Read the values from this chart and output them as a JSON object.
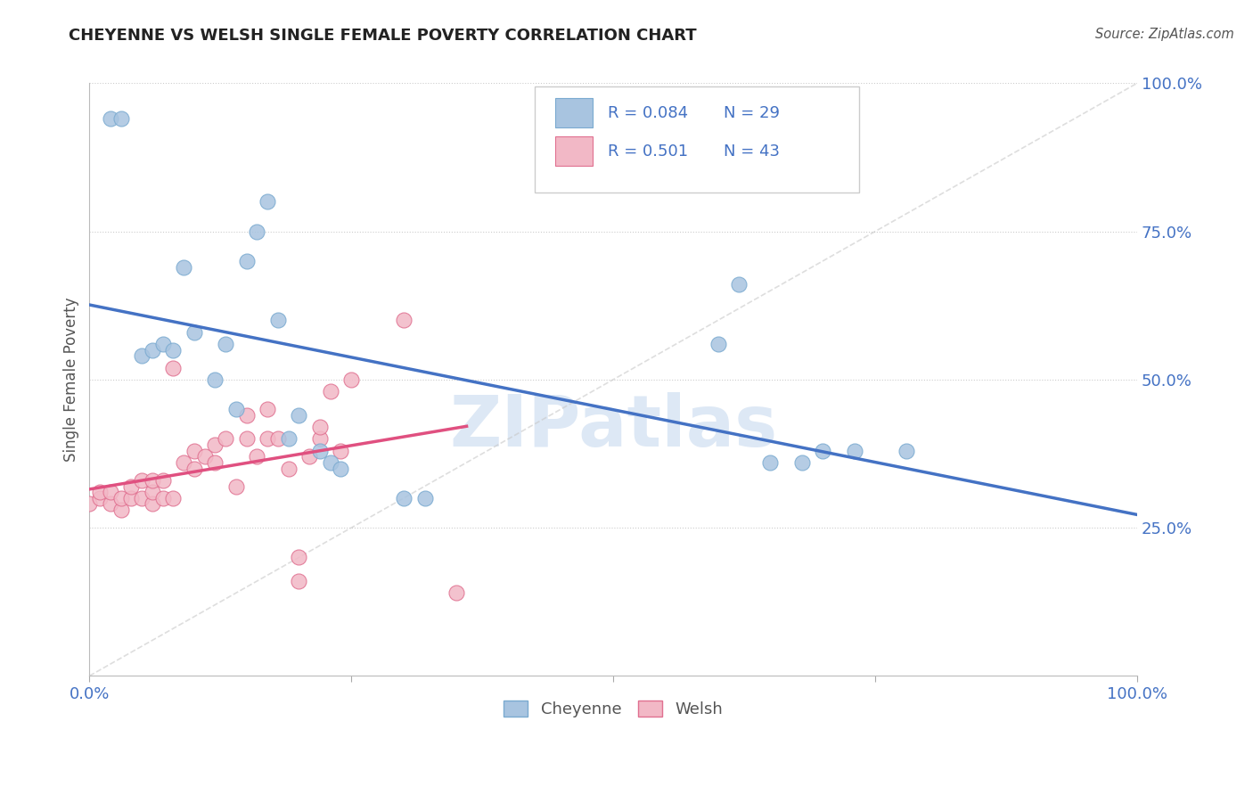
{
  "title": "CHEYENNE VS WELSH SINGLE FEMALE POVERTY CORRELATION CHART",
  "source": "Source: ZipAtlas.com",
  "ylabel": "Single Female Poverty",
  "watermark": "ZIPatlas",
  "cheyenne": {
    "R": 0.084,
    "N": 29,
    "color": "#a8c4e0",
    "edge_color": "#7aaad0",
    "line_color": "#4472c4",
    "x": [
      0.02,
      0.03,
      0.05,
      0.06,
      0.07,
      0.08,
      0.09,
      0.1,
      0.12,
      0.13,
      0.14,
      0.15,
      0.16,
      0.17,
      0.18,
      0.19,
      0.2,
      0.22,
      0.23,
      0.24,
      0.3,
      0.32,
      0.6,
      0.62,
      0.65,
      0.68,
      0.7,
      0.73,
      0.78
    ],
    "y": [
      0.94,
      0.94,
      0.54,
      0.55,
      0.56,
      0.55,
      0.69,
      0.58,
      0.5,
      0.56,
      0.45,
      0.7,
      0.75,
      0.8,
      0.6,
      0.4,
      0.44,
      0.38,
      0.36,
      0.35,
      0.3,
      0.3,
      0.56,
      0.66,
      0.36,
      0.36,
      0.38,
      0.38,
      0.38
    ]
  },
  "welsh": {
    "R": 0.501,
    "N": 43,
    "color": "#f2b8c6",
    "edge_color": "#e07090",
    "line_color": "#e05080",
    "x": [
      0.0,
      0.01,
      0.01,
      0.02,
      0.02,
      0.03,
      0.03,
      0.04,
      0.04,
      0.05,
      0.05,
      0.06,
      0.06,
      0.06,
      0.07,
      0.07,
      0.08,
      0.08,
      0.09,
      0.1,
      0.1,
      0.11,
      0.12,
      0.12,
      0.13,
      0.14,
      0.15,
      0.15,
      0.16,
      0.17,
      0.17,
      0.18,
      0.19,
      0.2,
      0.2,
      0.21,
      0.22,
      0.22,
      0.23,
      0.24,
      0.25,
      0.3,
      0.35
    ],
    "y": [
      0.29,
      0.3,
      0.31,
      0.29,
      0.31,
      0.28,
      0.3,
      0.3,
      0.32,
      0.3,
      0.33,
      0.29,
      0.31,
      0.33,
      0.3,
      0.33,
      0.3,
      0.52,
      0.36,
      0.35,
      0.38,
      0.37,
      0.36,
      0.39,
      0.4,
      0.32,
      0.4,
      0.44,
      0.37,
      0.4,
      0.45,
      0.4,
      0.35,
      0.16,
      0.2,
      0.37,
      0.4,
      0.42,
      0.48,
      0.38,
      0.5,
      0.6,
      0.14
    ]
  },
  "xlim": [
    0.0,
    1.0
  ],
  "ylim": [
    0.0,
    1.0
  ],
  "xticks": [
    0.0,
    0.25,
    0.5,
    0.75,
    1.0
  ],
  "yticks": [
    0.25,
    0.5,
    0.75,
    1.0
  ],
  "xticklabels": [
    "0.0%",
    "",
    "",
    "",
    "100.0%"
  ],
  "yticklabels": [
    "25.0%",
    "50.0%",
    "75.0%",
    "100.0%"
  ],
  "background_color": "#ffffff",
  "grid_color": "#cccccc",
  "title_color": "#222222",
  "ylabel_color": "#555555",
  "tick_label_color": "#4472c4",
  "source_color": "#555555",
  "diagonal_color": "#c8c8c8",
  "legend_border_color": "#cccccc",
  "legend_text_color": "#333333",
  "legend_val_color": "#4472c4",
  "watermark_color": "#dde8f5"
}
